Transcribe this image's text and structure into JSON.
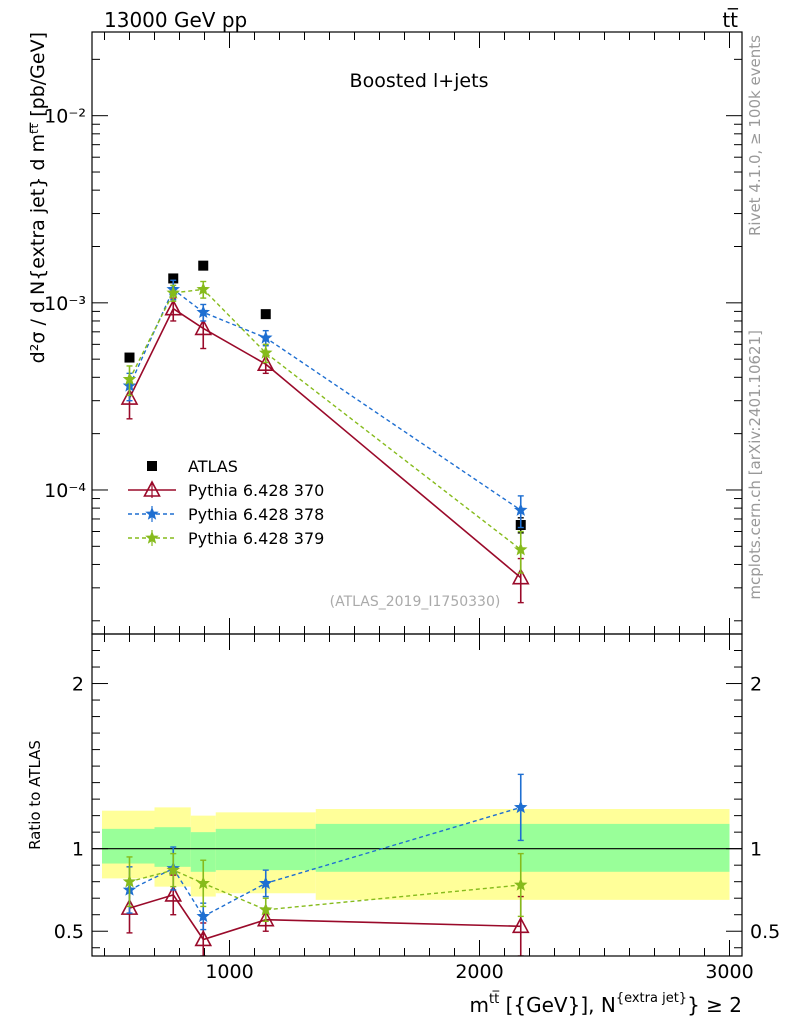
{
  "header": {
    "left_label": "13000 GeV pp",
    "right_label": "tt̅"
  },
  "side_labels": {
    "rivet": "Rivet 4.1.0, ≥ 100k events",
    "mcplots": "mcplots.cern.ch [arXiv:2401.10621]"
  },
  "colors": {
    "data": "#000000",
    "p370": "#9a0a2a",
    "p378": "#1f6fd1",
    "p379": "#86bb1c",
    "band_outer": "#ffff99",
    "band_inner": "#99ff99"
  },
  "chart_data": [
    {
      "type": "scatter",
      "panel": "main",
      "title": "Boosted l+jets",
      "watermark": "(ATLAS_2019_I1750330)",
      "ylabel": "d²σ / d N{extra jet} d mᵗᵗ̅ [pb/GeV]",
      "yscale": "log",
      "ylim": [
        1.7e-05,
        0.028
      ],
      "xlim": [
        450,
        3050
      ],
      "y_ticks": [
        {
          "value": 0.01,
          "label": "10⁻²"
        },
        {
          "value": 0.001,
          "label": "10⁻³"
        },
        {
          "value": 0.0001,
          "label": "10⁻⁴"
        }
      ],
      "x": [
        600,
        775,
        895,
        1145,
        2165
      ],
      "series": [
        {
          "name": "ATLAS",
          "key": "data",
          "values": [
            0.00051,
            0.00135,
            0.00158,
            0.00087,
            6.5e-05
          ],
          "err": [
            2e-05,
            5e-05,
            6e-05,
            4e-05,
            6e-06
          ]
        },
        {
          "name": "Pythia 6.428 370",
          "key": "p370",
          "values": [
            0.00031,
            0.00093,
            0.00073,
            0.00047,
            3.4e-05
          ],
          "err": [
            7e-05,
            0.00013,
            0.00016,
            5e-05,
            9e-06
          ]
        },
        {
          "name": "Pythia 6.428 378",
          "key": "p378",
          "values": [
            0.00036,
            0.00118,
            0.00089,
            0.00065,
            7.8e-05
          ],
          "err": [
            6e-05,
            0.00014,
            9e-05,
            6e-05,
            1.5e-05
          ]
        },
        {
          "name": "Pythia 6.428 379",
          "key": "p379",
          "values": [
            0.00039,
            0.00113,
            0.00118,
            0.00054,
            4.8e-05
          ],
          "err": [
            7e-05,
            0.00011,
            0.00012,
            6e-05,
            1.2e-05
          ]
        }
      ]
    },
    {
      "type": "scatter",
      "panel": "ratio",
      "ylabel": "Ratio to ATLAS",
      "ylim": [
        0.35,
        2.3
      ],
      "xlim": [
        450,
        3050
      ],
      "y_ticks": [
        {
          "value": 0.5,
          "label": "0.5"
        },
        {
          "value": 1,
          "label": "1"
        },
        {
          "value": 2,
          "label": "2"
        }
      ],
      "x_ticks": [
        {
          "value": 1000,
          "label": "1000"
        },
        {
          "value": 2000,
          "label": "2000"
        },
        {
          "value": 3000,
          "label": "3000"
        }
      ],
      "xlabel_parts": {
        "m": "m",
        "sup": "tt̅",
        "mid": " [{GeV}], N",
        "sup2": "{extra jet}",
        "end": "} ≥ 2"
      },
      "bands": [
        {
          "x0": 490,
          "x1": 700,
          "outer": [
            0.82,
            1.23
          ],
          "inner": [
            0.91,
            1.12
          ]
        },
        {
          "x0": 700,
          "x1": 845,
          "outer": [
            0.77,
            1.25
          ],
          "inner": [
            0.89,
            1.13
          ]
        },
        {
          "x0": 845,
          "x1": 945,
          "outer": [
            0.71,
            1.2
          ],
          "inner": [
            0.86,
            1.1
          ]
        },
        {
          "x0": 945,
          "x1": 1345,
          "outer": [
            0.73,
            1.22
          ],
          "inner": [
            0.87,
            1.12
          ]
        },
        {
          "x0": 1345,
          "x1": 3000,
          "outer": [
            0.69,
            1.24
          ],
          "inner": [
            0.86,
            1.15
          ]
        }
      ],
      "x": [
        600,
        775,
        895,
        1145,
        2165
      ],
      "series": [
        {
          "name": "Pythia 6.428 370",
          "key": "p370",
          "values": [
            0.64,
            0.72,
            0.45,
            0.57,
            0.53
          ],
          "err": [
            0.15,
            0.12,
            0.1,
            0.07,
            0.18
          ]
        },
        {
          "name": "Pythia 6.428 378",
          "key": "p378",
          "values": [
            0.75,
            0.88,
            0.59,
            0.79,
            1.25
          ],
          "err": [
            0.14,
            0.13,
            0.08,
            0.08,
            0.2
          ]
        },
        {
          "name": "Pythia 6.428 379",
          "key": "p379",
          "values": [
            0.8,
            0.87,
            0.79,
            0.63,
            0.78
          ],
          "err": [
            0.15,
            0.1,
            0.14,
            0.07,
            0.19
          ]
        }
      ]
    }
  ]
}
